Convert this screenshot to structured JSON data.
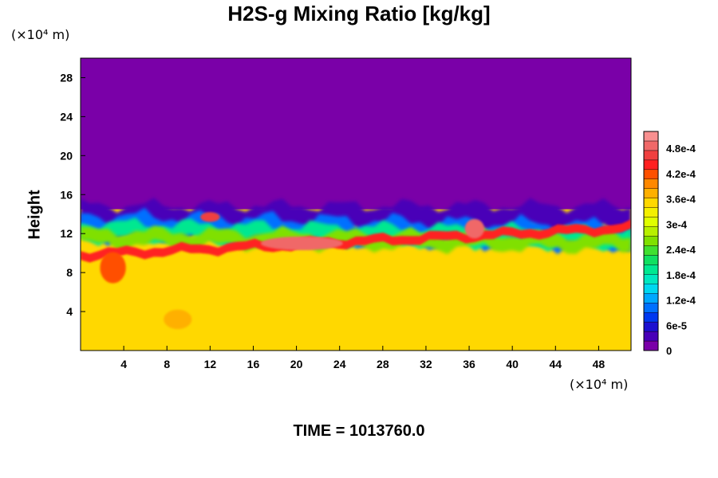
{
  "chart_data": {
    "type": "heatmap",
    "title": "H2S-g Mixing Ratio [kg/kg]",
    "ylabel": "Height",
    "y_unit": "(×10⁴ m)",
    "x_unit": "(×10⁴ m)",
    "xlim": [
      0,
      51
    ],
    "ylim": [
      0,
      30
    ],
    "x_ticks": [
      4,
      8,
      12,
      16,
      20,
      24,
      28,
      32,
      36,
      40,
      44,
      48
    ],
    "y_ticks": [
      4,
      8,
      12,
      16,
      20,
      24,
      28
    ],
    "colorbar": {
      "range": [
        0,
        0.00052
      ],
      "tick_values": [
        0,
        6e-05,
        0.00012,
        0.00018,
        0.00024,
        0.0003,
        0.00036,
        0.00042,
        0.00048
      ],
      "tick_labels": [
        "0",
        "6e-5",
        "1.2e-4",
        "1.8e-4",
        "2.4e-4",
        "3e-4",
        "3.6e-4",
        "4.2e-4",
        "4.8e-4"
      ],
      "colors": [
        "#7a00a8",
        "#4800b8",
        "#1c10d0",
        "#0038f0",
        "#0070ff",
        "#00a8ff",
        "#00d8f0",
        "#00e8c0",
        "#00e890",
        "#10e060",
        "#40e030",
        "#80e000",
        "#b8f000",
        "#e0ff00",
        "#f4f000",
        "#ffd800",
        "#ffb000",
        "#ff8800",
        "#ff5000",
        "#ff2020",
        "#f04040",
        "#f06868",
        "#f89090"
      ]
    },
    "fields": {
      "upper_value": 0,
      "lower_value": 0.00035,
      "interface_height": 14.5,
      "max_value": 0.0005
    },
    "footer": "TIME = 1013760.0"
  }
}
